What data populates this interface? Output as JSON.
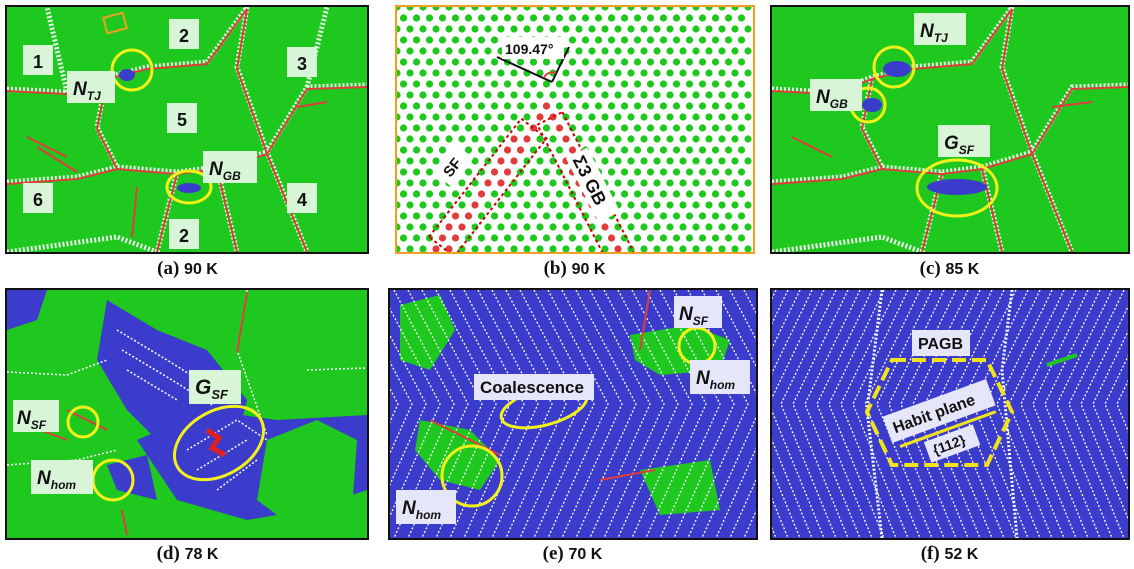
{
  "colors": {
    "fcc": "#1ec81e",
    "bcc": "#3c3ccc",
    "hcp": "#e03c3c",
    "other": "#ffffff",
    "highlight": "#f2f21a",
    "label_bg": "#d8f5d8",
    "label_bg_blue": "#e6e6fa"
  },
  "panels": {
    "a": {
      "letter": "(a)",
      "temp": "90 K",
      "grains": [
        "1",
        "2",
        "3",
        "5",
        "6",
        "2",
        "4"
      ],
      "labels": {
        "ntj_main": "N",
        "ntj_sub": "TJ",
        "ngb_main": "N",
        "ngb_sub": "GB"
      }
    },
    "b": {
      "letter": "(b)",
      "temp": "90 K",
      "angle": "109.47°",
      "sf_label": "SF",
      "gb_label": "Σ3 GB"
    },
    "c": {
      "letter": "(c)",
      "temp": "85 K",
      "labels": {
        "ntj_main": "N",
        "ntj_sub": "TJ",
        "ngb_main": "N",
        "ngb_sub": "GB",
        "gsf_main": "G",
        "gsf_sub": "SF"
      }
    },
    "d": {
      "letter": "(d)",
      "temp": "78 K",
      "labels": {
        "nsf_main": "N",
        "nsf_sub": "SF",
        "gsf_main": "G",
        "gsf_sub": "SF",
        "nhom_main": "N",
        "nhom_sub": "hom"
      }
    },
    "e": {
      "letter": "(e)",
      "temp": "70 K",
      "labels": {
        "nsf_main": "N",
        "nsf_sub": "SF",
        "coalescence": "Coalescence",
        "nhom_main": "N",
        "nhom_sub": "hom",
        "nhom2_main": "N",
        "nhom2_sub": "hom"
      }
    },
    "f": {
      "letter": "(f)",
      "temp": "52 K",
      "labels": {
        "pagb": "PAGB",
        "habit": "Habit plane",
        "plane": "{112}"
      }
    }
  }
}
